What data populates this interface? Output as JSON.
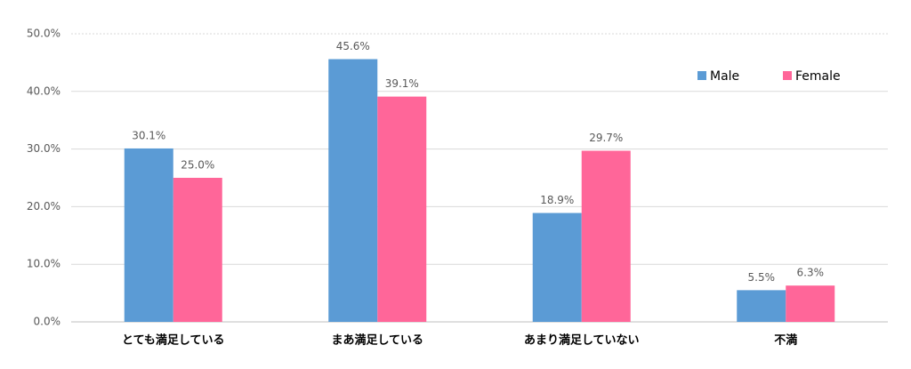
{
  "chart_data": {
    "type": "bar",
    "categories": [
      "とても満足している",
      "まあ満足している",
      "あまり満足していない",
      "不満"
    ],
    "series": [
      {
        "name": "Male",
        "color": "#5b9bd5",
        "values": [
          30.1,
          45.6,
          18.9,
          5.5
        ],
        "value_labels": [
          "30.1%",
          "45.6%",
          "18.9%",
          "5.5%"
        ]
      },
      {
        "name": "Female",
        "color": "#ff6699",
        "values": [
          25.0,
          39.1,
          29.7,
          6.3
        ],
        "value_labels": [
          "25.0%",
          "39.1%",
          "29.7%",
          "6.3%"
        ]
      }
    ],
    "ylim": [
      0,
      50
    ],
    "yticks": [
      {
        "value": 0,
        "label": "0.0%"
      },
      {
        "value": 10,
        "label": "10.0%"
      },
      {
        "value": 20,
        "label": "20.0%"
      },
      {
        "value": 30,
        "label": "30.0%"
      },
      {
        "value": 40,
        "label": "40.0%"
      },
      {
        "value": 50,
        "label": "50.0%"
      }
    ],
    "grid": true,
    "legend": "upper right"
  }
}
